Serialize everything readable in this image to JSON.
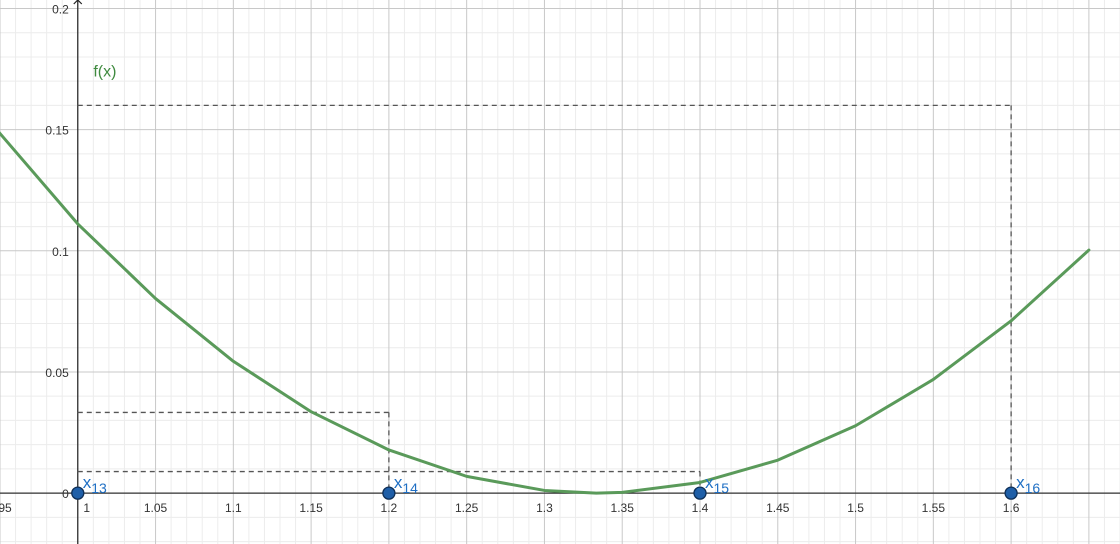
{
  "chart_data": {
    "type": "line",
    "title": "",
    "xlabel": "",
    "ylabel": "",
    "xlim": [
      0.95,
      1.67
    ],
    "ylim": [
      -0.021,
      0.2035
    ],
    "grid": true,
    "x_ticks": [
      0.95,
      1,
      1.05,
      1.1,
      1.15,
      1.2,
      1.25,
      1.3,
      1.35,
      1.4,
      1.45,
      1.5,
      1.55,
      1.6
    ],
    "x_tick_labels": [
      "0.95",
      "1",
      "1.05",
      "1.1",
      "1.15",
      "1.2",
      "1.25",
      "1.3",
      "1.35",
      "1.4",
      "1.45",
      "1.5",
      "1.55",
      "1.6"
    ],
    "y_ticks": [
      0,
      0.05,
      0.1,
      0.15,
      0.2
    ],
    "y_tick_labels": [
      "0",
      "0.05",
      "0.1",
      "0.15",
      "0.2"
    ],
    "function": {
      "label": "f(x)",
      "color": "#5a9a5a",
      "label_color": "#3f8a3f",
      "formula": "(x - 4/3)^2",
      "x": [
        0.92,
        1.0,
        1.05,
        1.1,
        1.15,
        1.2,
        1.25,
        1.3,
        1.3333,
        1.35,
        1.4,
        1.45,
        1.5,
        1.55,
        1.6,
        1.65
      ],
      "y": [
        0.1708,
        0.1111,
        0.0803,
        0.0544,
        0.0336,
        0.0178,
        0.0069,
        0.0011,
        0.0,
        0.0003,
        0.0044,
        0.0136,
        0.0278,
        0.0469,
        0.0711,
        0.1003
      ]
    },
    "points": [
      {
        "label": "x",
        "sub": "13",
        "x": 1.0,
        "y": 0
      },
      {
        "label": "x",
        "sub": "14",
        "x": 1.2,
        "y": 0
      },
      {
        "label": "x",
        "sub": "15",
        "x": 1.4,
        "y": 0
      },
      {
        "label": "x",
        "sub": "16",
        "x": 1.6,
        "y": 0
      }
    ],
    "point_color": "#1f5fa8",
    "point_label_color": "#1f6fc4",
    "construction_lines": [
      {
        "x": 1.2,
        "y": 0.0333
      },
      {
        "x": 1.4,
        "y": 0.0089
      },
      {
        "x": 1.6,
        "y": 0.16
      }
    ]
  }
}
